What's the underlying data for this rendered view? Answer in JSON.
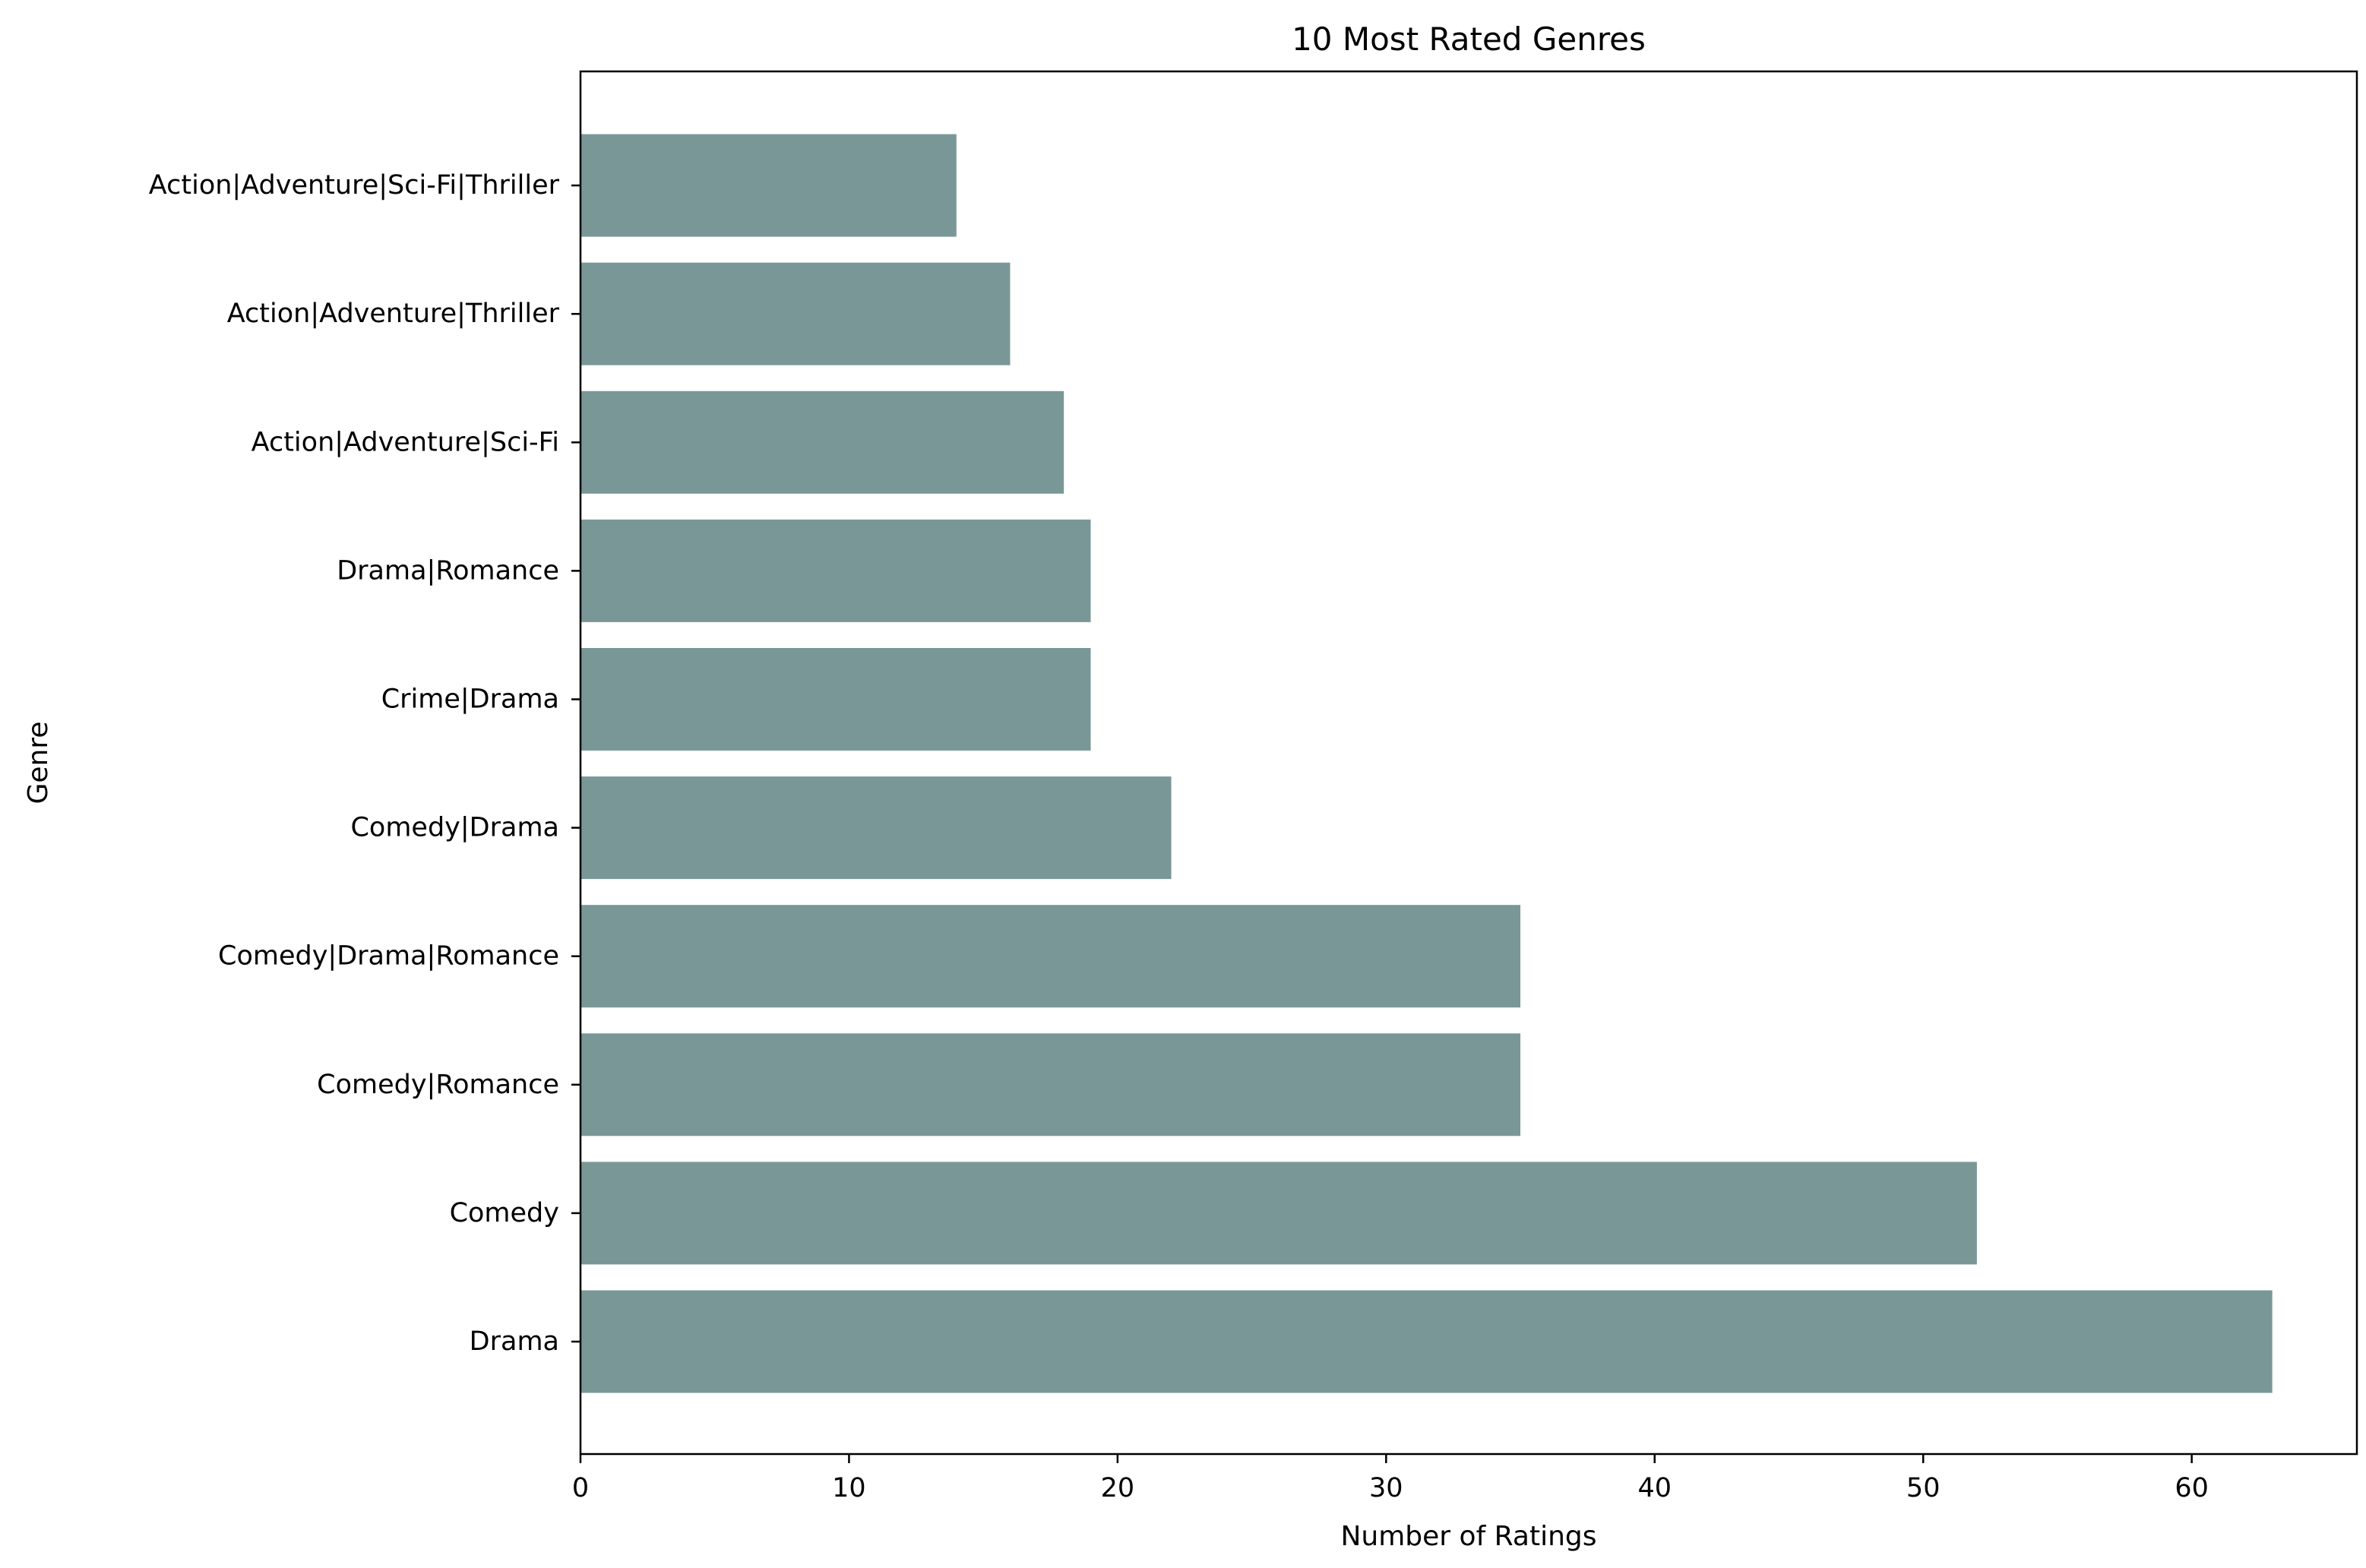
{
  "chart_data": {
    "type": "bar",
    "orientation": "horizontal",
    "title": "10 Most Rated Genres",
    "xlabel": "Number of Ratings",
    "ylabel": "Genre",
    "categories": [
      "Drama",
      "Comedy",
      "Comedy|Romance",
      "Comedy|Drama|Romance",
      "Comedy|Drama",
      "Crime|Drama",
      "Drama|Romance",
      "Action|Adventure|Sci-Fi",
      "Action|Adventure|Thriller",
      "Action|Adventure|Sci-Fi|Thriller"
    ],
    "values": [
      63,
      52,
      35,
      35,
      22,
      19,
      19,
      18,
      16,
      14
    ],
    "xlim": [
      0,
      66.15
    ],
    "xticks": [
      0,
      10,
      20,
      30,
      40,
      50,
      60
    ],
    "grid": false,
    "legend": "none",
    "colors": {
      "bar": "#7a9797"
    }
  }
}
